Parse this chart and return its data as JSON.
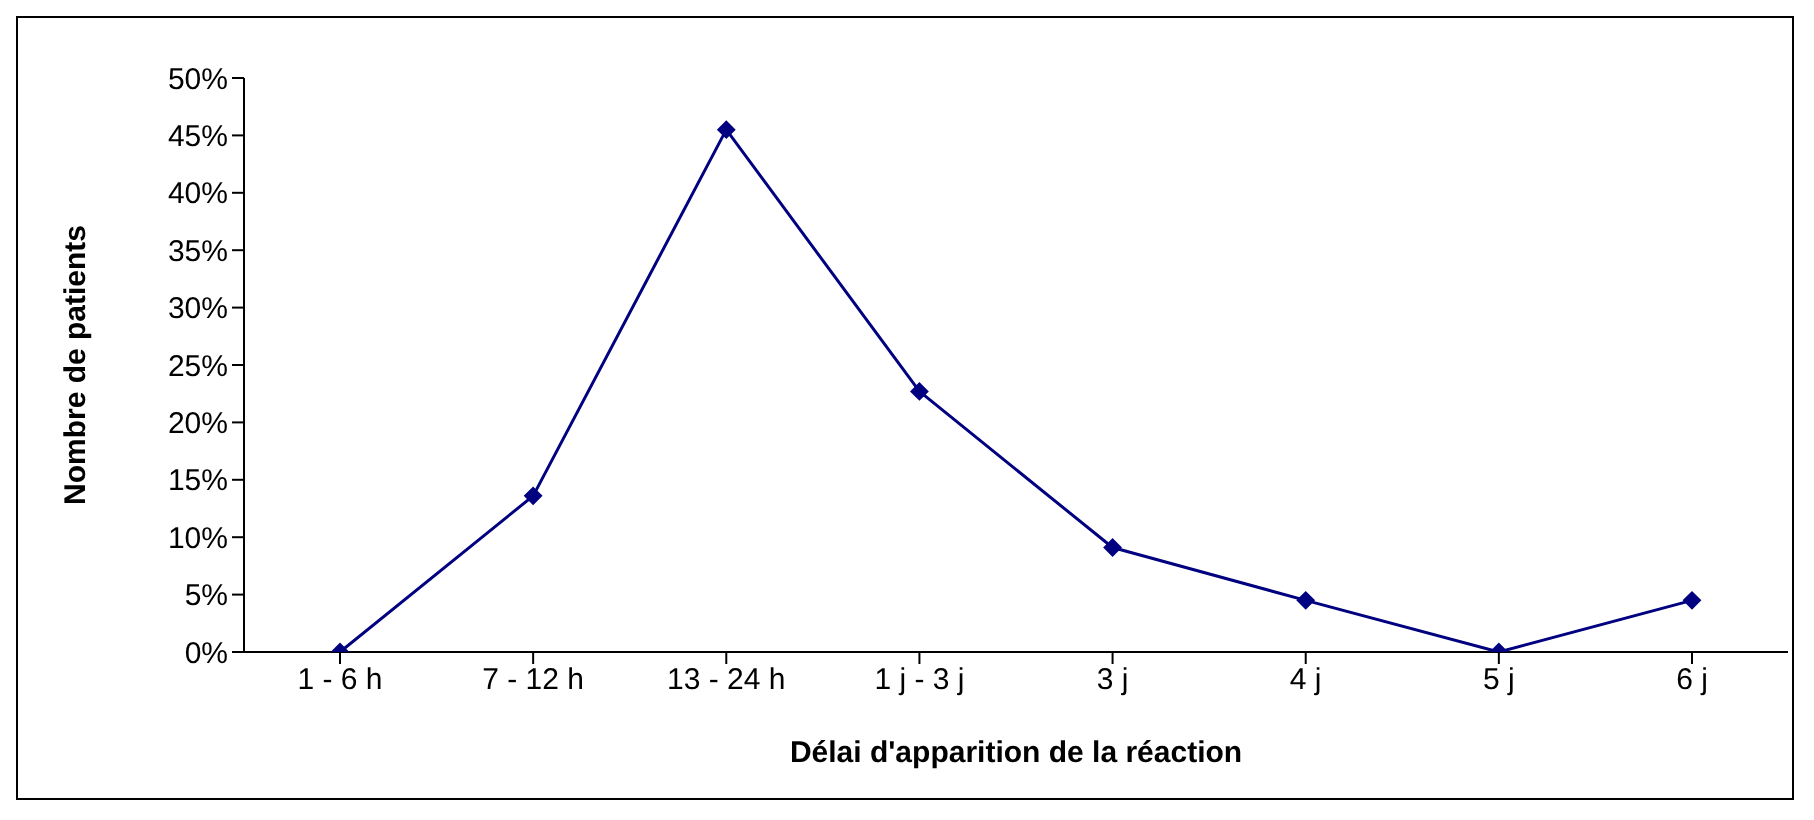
{
  "chart_data": {
    "type": "line",
    "xlabel": "Délai d'apparition de la réaction",
    "ylabel": "Nombre de patients",
    "categories": [
      "1 - 6 h",
      "7 - 12 h",
      "13 - 24 h",
      "1 j - 3 j",
      "3 j",
      "4 j",
      "5 j",
      "6 j"
    ],
    "series": [
      {
        "color": "#000080",
        "values": [
          0,
          13.6,
          45.5,
          22.7,
          9.1,
          4.5,
          0,
          4.5
        ]
      }
    ],
    "ylim": [
      0,
      50
    ],
    "yticks": [
      {
        "value": 0,
        "label": "0%"
      },
      {
        "value": 5,
        "label": "5%"
      },
      {
        "value": 10,
        "label": "10%"
      },
      {
        "value": 15,
        "label": "15%"
      },
      {
        "value": 20,
        "label": "20%"
      },
      {
        "value": 25,
        "label": "25%"
      },
      {
        "value": 30,
        "label": "30%"
      },
      {
        "value": 35,
        "label": "35%"
      },
      {
        "value": 40,
        "label": "40%"
      },
      {
        "value": 45,
        "label": "45%"
      },
      {
        "value": 50,
        "label": "50%"
      }
    ],
    "grid": false,
    "legend": false,
    "marker": "diamond",
    "line_style": "solid"
  }
}
